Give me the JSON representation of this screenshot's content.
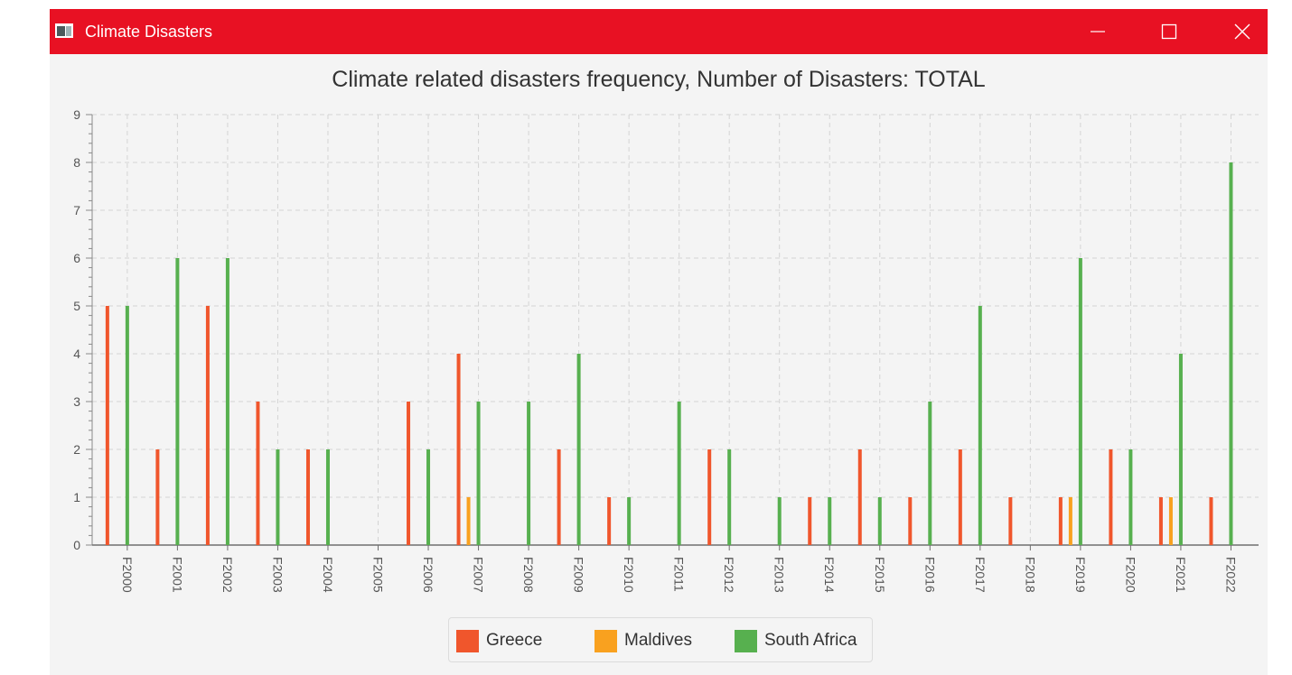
{
  "window": {
    "title": "Climate Disasters",
    "controls": {
      "minimize": "minimize",
      "maximize": "maximize",
      "close": "close"
    }
  },
  "colors": {
    "titlebar": "#e81123",
    "Greece": "#f0562c",
    "Maldives": "#f9a11f",
    "South Africa": "#57b04f"
  },
  "chart_data": {
    "type": "bar",
    "title": "Climate related disasters frequency, Number of Disasters: TOTAL",
    "xlabel": "",
    "ylabel": "",
    "ylim": [
      0,
      9
    ],
    "y_ticks": [
      "0",
      "1",
      "2",
      "3",
      "4",
      "5",
      "6",
      "7",
      "8",
      "9"
    ],
    "grid": true,
    "legend_position": "bottom",
    "categories": [
      "F2000",
      "F2001",
      "F2002",
      "F2003",
      "F2004",
      "F2005",
      "F2006",
      "F2007",
      "F2008",
      "F2009",
      "F2010",
      "F2011",
      "F2012",
      "F2013",
      "F2014",
      "F2015",
      "F2016",
      "F2017",
      "F2018",
      "F2019",
      "F2020",
      "F2021",
      "F2022"
    ],
    "series": [
      {
        "name": "Greece",
        "values": [
          5,
          2,
          5,
          3,
          2,
          0,
          3,
          4,
          0,
          2,
          1,
          0,
          2,
          0,
          1,
          2,
          1,
          2,
          1,
          1,
          2,
          1,
          1
        ]
      },
      {
        "name": "Maldives",
        "values": [
          0,
          0,
          0,
          0,
          0,
          0,
          0,
          1,
          0,
          0,
          0,
          0,
          0,
          0,
          0,
          0,
          0,
          0,
          0,
          1,
          0,
          1,
          0
        ]
      },
      {
        "name": "South Africa",
        "values": [
          5,
          6,
          6,
          2,
          2,
          0,
          2,
          3,
          3,
          4,
          1,
          3,
          2,
          1,
          1,
          1,
          3,
          5,
          0,
          6,
          2,
          4,
          8
        ]
      }
    ]
  }
}
